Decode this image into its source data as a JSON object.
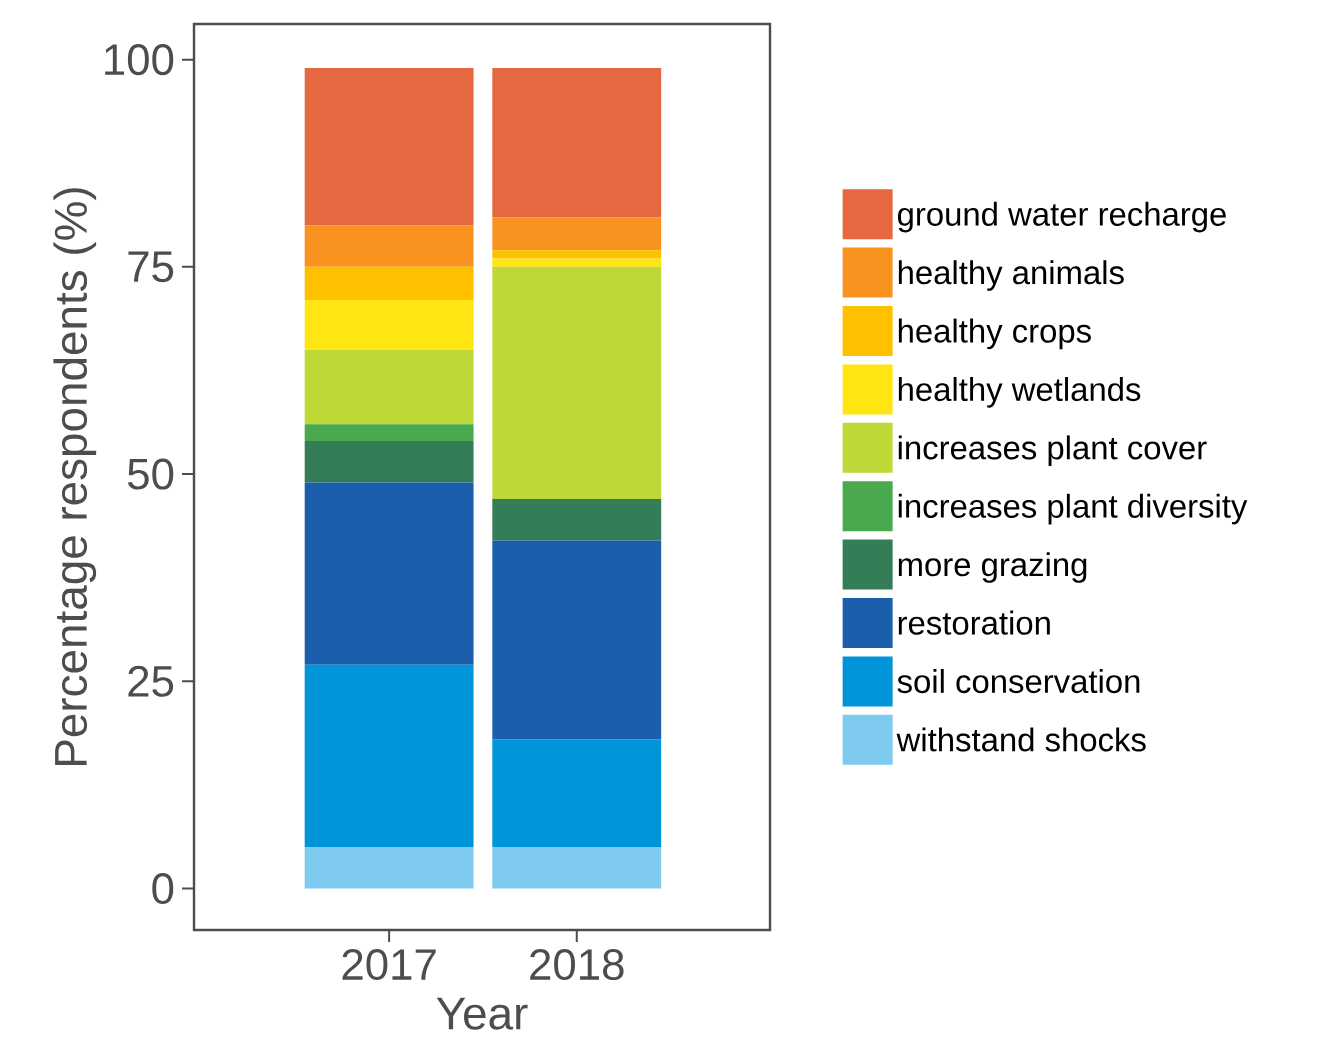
{
  "chart_data": {
    "type": "bar",
    "stacked": true,
    "xlabel": "Year",
    "ylabel": "Percentage respondents (%)",
    "categories": [
      "2017",
      "2018"
    ],
    "ylim": [
      -5,
      104.3
    ],
    "yticks": [
      0,
      25,
      50,
      75,
      100
    ],
    "grid": false,
    "legend": "right",
    "series": [
      {
        "name": "withstand shocks",
        "color": "#7ecbef",
        "values": [
          5,
          5
        ]
      },
      {
        "name": "soil conservation",
        "color": "#0094d8",
        "values": [
          22,
          13
        ]
      },
      {
        "name": "restoration",
        "color": "#1b5eab",
        "values": [
          22,
          24
        ]
      },
      {
        "name": "more grazing",
        "color": "#347d57",
        "values": [
          5,
          5
        ]
      },
      {
        "name": "increases plant diversity",
        "color": "#4aa84e",
        "values": [
          2,
          0
        ]
      },
      {
        "name": "increases plant cover",
        "color": "#bcd937",
        "values": [
          9,
          28
        ]
      },
      {
        "name": "healthy wetlands",
        "color": "#ffe512",
        "values": [
          6,
          1
        ]
      },
      {
        "name": "healthy crops",
        "color": "#ffc000",
        "values": [
          4,
          1
        ]
      },
      {
        "name": "healthy animals",
        "color": "#f7931e",
        "values": [
          5,
          4
        ]
      },
      {
        "name": "ground water recharge",
        "color": "#e66840",
        "values": [
          19,
          18
        ]
      }
    ]
  }
}
